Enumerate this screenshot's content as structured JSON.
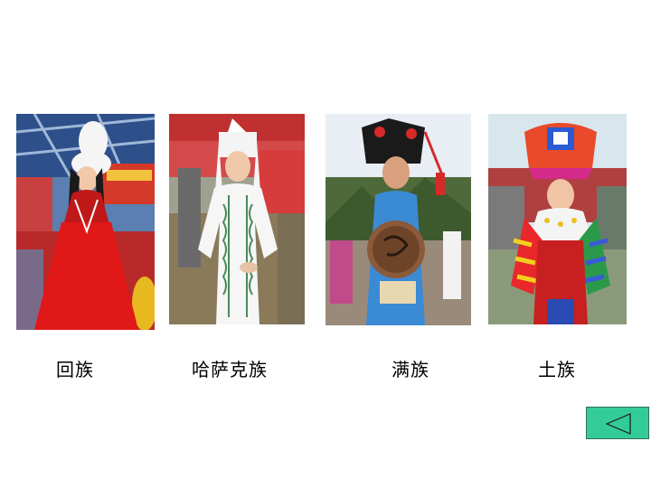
{
  "slide": {
    "photos": [
      {
        "caption": "回族"
      },
      {
        "caption": "哈萨克族"
      },
      {
        "caption": "满族"
      },
      {
        "caption": "土族"
      }
    ],
    "nav": {
      "back_icon": "triangle-left-icon"
    },
    "colors": {
      "background": "#ffffff",
      "button_fill": "#33cc99",
      "button_border": "#2f6f4f"
    }
  }
}
